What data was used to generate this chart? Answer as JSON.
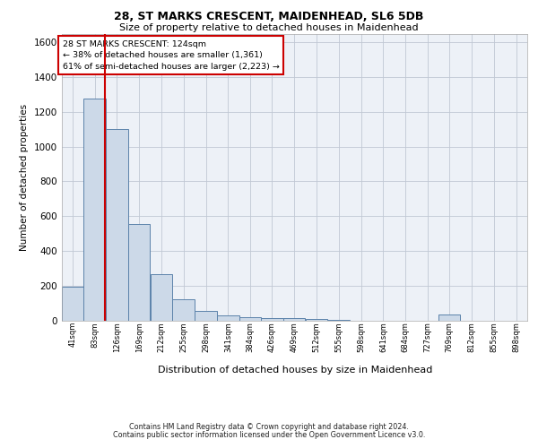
{
  "title1": "28, ST MARKS CRESCENT, MAIDENHEAD, SL6 5DB",
  "title2": "Size of property relative to detached houses in Maidenhead",
  "xlabel": "Distribution of detached houses by size in Maidenhead",
  "ylabel": "Number of detached properties",
  "footer1": "Contains HM Land Registry data © Crown copyright and database right 2024.",
  "footer2": "Contains public sector information licensed under the Open Government Licence v3.0.",
  "annotation_line1": "28 ST MARKS CRESCENT: 124sqm",
  "annotation_line2": "← 38% of detached houses are smaller (1,361)",
  "annotation_line3": "61% of semi-detached houses are larger (2,223) →",
  "property_size": 124,
  "bar_color": "#ccd9e8",
  "bar_edge_color": "#5b82aa",
  "red_line_color": "#cc0000",
  "background_color": "#edf1f7",
  "grid_color": "#c0c8d4",
  "bins": [
    41,
    83,
    126,
    169,
    212,
    255,
    298,
    341,
    384,
    426,
    469,
    512,
    555,
    598,
    641,
    684,
    727,
    769,
    812,
    855,
    898
  ],
  "heights": [
    195,
    1275,
    1100,
    555,
    265,
    120,
    55,
    30,
    18,
    15,
    12,
    10,
    1,
    0,
    0,
    0,
    0,
    32,
    0,
    0,
    0
  ],
  "bin_width": 43,
  "ylim_max": 1650,
  "yticks": [
    0,
    200,
    400,
    600,
    800,
    1000,
    1200,
    1400,
    1600
  ],
  "fig_width": 6.0,
  "fig_height": 5.0,
  "fig_dpi": 100
}
